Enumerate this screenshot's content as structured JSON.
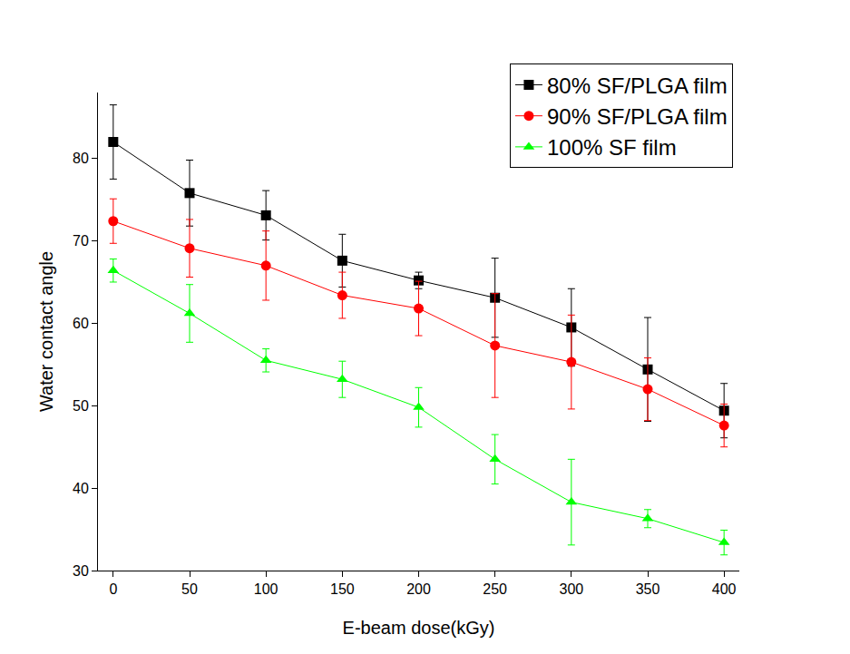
{
  "chart_data": {
    "type": "line",
    "x_label": "E-beam dose(kGy)",
    "y_label": "Water contact angle",
    "x": [
      0,
      50,
      100,
      150,
      200,
      250,
      300,
      350,
      400
    ],
    "series": [
      {
        "name": "80% SF/PLGA film",
        "color": "#000000",
        "marker": "square",
        "values": [
          82.0,
          75.8,
          73.1,
          67.6,
          65.2,
          63.1,
          59.5,
          54.4,
          49.4
        ],
        "error": [
          4.5,
          4.0,
          3.0,
          3.2,
          1.0,
          4.8,
          4.7,
          6.3,
          3.3
        ]
      },
      {
        "name": "90% SF/PLGA film",
        "color": "#ff0000",
        "marker": "circle",
        "values": [
          72.4,
          69.1,
          67.0,
          63.4,
          61.8,
          57.3,
          55.3,
          52.0,
          47.6
        ],
        "error": [
          2.7,
          3.5,
          4.2,
          2.8,
          3.3,
          6.3,
          5.7,
          3.8,
          2.6
        ]
      },
      {
        "name": "100% SF film",
        "color": "#00ff00",
        "marker": "triangle-up",
        "values": [
          66.4,
          61.2,
          55.5,
          53.2,
          49.8,
          43.5,
          38.3,
          36.3,
          33.4
        ],
        "error": [
          1.4,
          3.5,
          1.4,
          2.2,
          2.4,
          3.0,
          5.2,
          1.1,
          1.5
        ]
      }
    ],
    "xlim": [
      -10,
      410
    ],
    "xticks": [
      0,
      50,
      100,
      150,
      200,
      250,
      300,
      350,
      400
    ],
    "ylim": [
      30,
      88
    ],
    "yticks": [
      30,
      40,
      50,
      60,
      70,
      80
    ],
    "grid": false,
    "legend": "top right"
  }
}
